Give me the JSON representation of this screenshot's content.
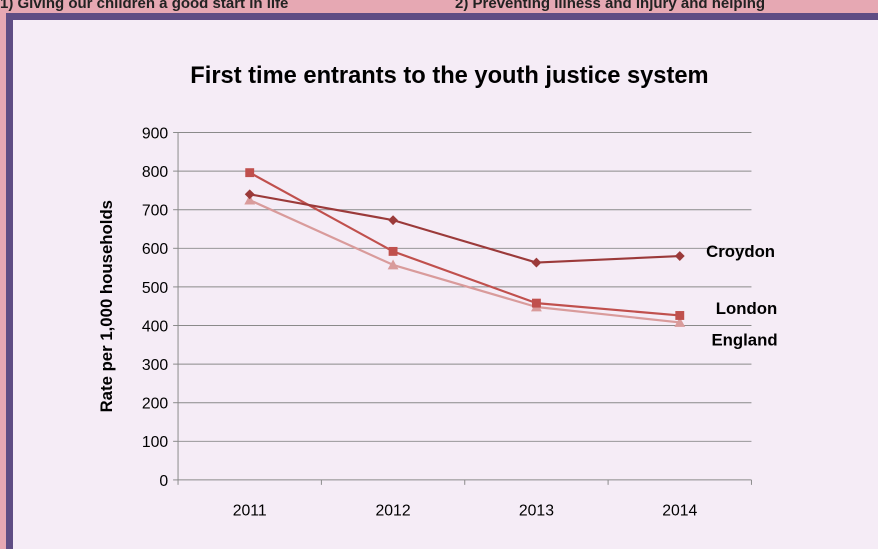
{
  "top_strip": {
    "text_left": "1) Giving our children a good start in life",
    "text_right": "2) Preventing illness and injury and helping"
  },
  "chart_data": {
    "type": "line",
    "title": "First time entrants to the youth justice system",
    "xlabel": "",
    "ylabel": "Rate per 1,000 households",
    "categories": [
      "2011",
      "2012",
      "2013",
      "2014"
    ],
    "ylim": [
      0,
      900
    ],
    "yticks": [
      0,
      100,
      200,
      300,
      400,
      500,
      600,
      700,
      800,
      900
    ],
    "grid": true,
    "legend": "inline-right",
    "series": [
      {
        "name": "Croydon",
        "values": [
          740,
          673,
          563,
          580
        ],
        "color": "#9b3a3a",
        "marker": "diamond"
      },
      {
        "name": "London",
        "values": [
          796,
          592,
          458,
          426
        ],
        "color": "#c0504d",
        "marker": "square"
      },
      {
        "name": "England",
        "values": [
          725,
          557,
          448,
          408
        ],
        "color": "#d99b9b",
        "marker": "triangle"
      }
    ]
  }
}
